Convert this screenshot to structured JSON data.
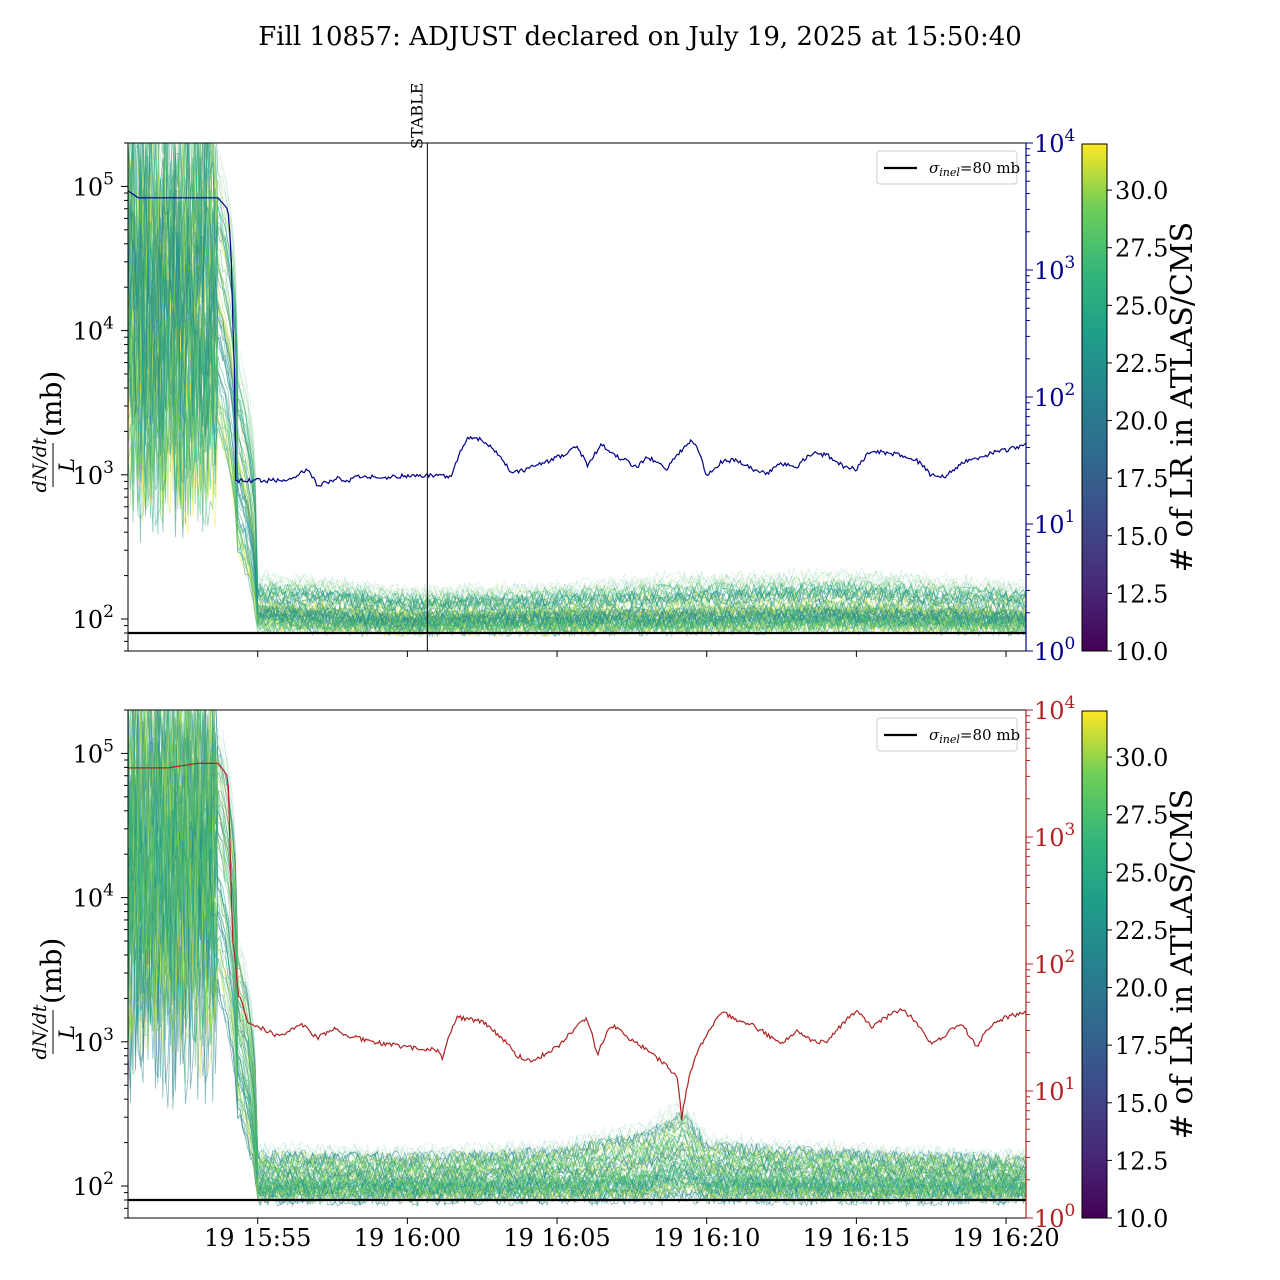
{
  "chart_data": {
    "title": "Fill 10857: ADJUST declared on July 19, 2025 at 15:50:40",
    "x_tick_labels": [
      "19 15:55",
      "19 16:00",
      "19 16:05",
      "19 16:10",
      "19 16:15",
      "19 16:20"
    ],
    "x_range": [
      "2025-07-19 15:50:40",
      "2025-07-19 16:20:40"
    ],
    "legend": {
      "label": "σ_inel=80 mb",
      "label_main": "σ",
      "label_sub": "inel",
      "label_rest": "=80 mb",
      "placement": "upper right"
    },
    "colorbar": {
      "label": "# of LR in ATLAS/CMS",
      "range": [
        10.0,
        32.0
      ],
      "ticks": [
        "10.0",
        "12.5",
        "15.0",
        "17.5",
        "20.0",
        "22.5",
        "25.0",
        "27.5",
        "30.0"
      ]
    },
    "panels": [
      {
        "type": "line",
        "left_axis": {
          "label": "dN/dt / L (mb)",
          "scale": "log",
          "ylim": [
            60,
            200000
          ],
          "tick_labels": [
            "10^2",
            "10^3",
            "10^4",
            "10^5"
          ]
        },
        "right_axis": {
          "scale": "log",
          "ylim": [
            1,
            10000
          ],
          "color": "#00008b",
          "tick_labels": [
            "10^0",
            "10^1",
            "10^2",
            "10^3",
            "10^4"
          ]
        },
        "vline": {
          "label": "STABLE",
          "x": "2025-07-19 16:00:40"
        },
        "hline_mb": 80,
        "right_series": {
          "color": "#00008b",
          "x": [
            "15:50:40",
            "15:51:00",
            "15:53:40",
            "15:54:00",
            "15:54:10",
            "15:54:15",
            "15:55:30",
            "15:56:00",
            "15:56:40",
            "15:57:00",
            "15:57:40",
            "15:58:00",
            "15:58:30",
            "15:59:00",
            "16:00:00",
            "16:01:00",
            "16:01:30",
            "16:02:00",
            "16:02:30",
            "16:03:30",
            "16:04:00",
            "16:04:40",
            "16:05:20",
            "16:05:40",
            "16:06:00",
            "16:06:30",
            "16:07:00",
            "16:07:40",
            "16:08:00",
            "16:08:40",
            "16:09:20",
            "16:09:30",
            "16:10:00",
            "16:10:30",
            "16:11:00",
            "16:11:30",
            "16:12:00",
            "16:12:30",
            "16:13:00",
            "16:13:30",
            "16:14:00",
            "16:14:30",
            "16:15:00",
            "16:15:30",
            "16:16:00",
            "16:16:30",
            "16:17:00",
            "16:17:30",
            "16:18:00",
            "16:18:30",
            "16:19:00",
            "16:19:30",
            "16:20:00",
            "16:20:40"
          ],
          "y": [
            4200,
            3700,
            3700,
            3000,
            400,
            22,
            22,
            22,
            27,
            20,
            23,
            22,
            24,
            23,
            24,
            24,
            24,
            48,
            46,
            25,
            27,
            31,
            36,
            41,
            29,
            42,
            34,
            28,
            34,
            27,
            42,
            47,
            24,
            31,
            32,
            27,
            25,
            30,
            28,
            36,
            35,
            29,
            27,
            38,
            36,
            35,
            32,
            24,
            24,
            30,
            33,
            36,
            38,
            42
          ]
        },
        "left_series_summary": {
          "x": [
            "15:50:40",
            "15:53:00",
            "15:53:40",
            "15:54:20",
            "15:55:00",
            "15:57:00",
            "16:00:00",
            "16:05:00",
            "16:09:00",
            "16:10:00",
            "16:15:00",
            "16:20:40"
          ],
          "y_median": [
            25000,
            25000,
            25000,
            1500,
            120,
            115,
            105,
            110,
            112,
            115,
            118,
            110
          ],
          "y_low": [
            2000,
            2000,
            2000,
            300,
            90,
            88,
            85,
            86,
            86,
            87,
            88,
            86
          ],
          "y_high": [
            200000,
            200000,
            200000,
            8000,
            200,
            190,
            160,
            170,
            200,
            200,
            210,
            175
          ]
        }
      },
      {
        "type": "line",
        "left_axis": {
          "label": "dN/dt / L (mb)",
          "scale": "log",
          "ylim": [
            60,
            200000
          ],
          "tick_labels": [
            "10^2",
            "10^3",
            "10^4",
            "10^5"
          ]
        },
        "right_axis": {
          "scale": "log",
          "ylim": [
            1,
            10000
          ],
          "color": "#b22222",
          "tick_labels": [
            "10^0",
            "10^1",
            "10^2",
            "10^3",
            "10^4"
          ]
        },
        "hline_mb": 80,
        "right_series": {
          "color": "#b22222",
          "x": [
            "15:50:40",
            "15:52:00",
            "15:53:00",
            "15:53:40",
            "15:54:00",
            "15:54:05",
            "15:54:10",
            "15:54:20",
            "15:54:40",
            "15:55:40",
            "15:56:30",
            "15:57:00",
            "15:57:30",
            "15:58:00",
            "15:59:00",
            "16:00:00",
            "16:01:00",
            "16:01:10",
            "16:01:40",
            "16:02:30",
            "16:03:00",
            "16:03:40",
            "16:04:10",
            "16:05:00",
            "16:05:40",
            "16:06:00",
            "16:06:20",
            "16:06:50",
            "16:07:30",
            "16:08:00",
            "16:08:30",
            "16:09:00",
            "16:09:10",
            "16:09:30",
            "16:10:00",
            "16:10:30",
            "16:11:00",
            "16:11:30",
            "16:12:30",
            "16:13:00",
            "16:13:30",
            "16:14:00",
            "16:14:30",
            "16:15:00",
            "16:15:30",
            "16:16:00",
            "16:16:30",
            "16:17:00",
            "16:17:30",
            "16:18:00",
            "16:18:30",
            "16:19:00",
            "16:19:30",
            "16:20:00",
            "16:20:40"
          ],
          "y": [
            3500,
            3500,
            3800,
            3800,
            3000,
            500,
            150,
            60,
            35,
            27,
            33,
            26,
            31,
            27,
            24,
            22,
            21,
            18,
            38,
            35,
            28,
            19,
            17,
            22,
            32,
            37,
            19,
            33,
            25,
            21,
            17,
            13,
            6,
            15,
            28,
            42,
            36,
            33,
            23,
            30,
            25,
            24,
            33,
            42,
            32,
            38,
            44,
            35,
            23,
            28,
            34,
            22,
            33,
            38,
            42
          ]
        },
        "left_series_summary": {
          "x": [
            "15:50:40",
            "15:53:00",
            "15:53:40",
            "15:54:20",
            "15:55:00",
            "16:00:00",
            "16:05:00",
            "16:08:00",
            "16:09:10",
            "16:10:00",
            "16:15:00",
            "16:20:40"
          ],
          "y_median": [
            25000,
            25000,
            25000,
            1200,
            110,
            110,
            115,
            125,
            160,
            120,
            115,
            110
          ],
          "y_low": [
            2000,
            2000,
            2000,
            300,
            82,
            82,
            83,
            82,
            85,
            82,
            82,
            82
          ],
          "y_high": [
            200000,
            200000,
            200000,
            6000,
            190,
            180,
            200,
            280,
            400,
            220,
            190,
            170
          ]
        }
      }
    ]
  }
}
